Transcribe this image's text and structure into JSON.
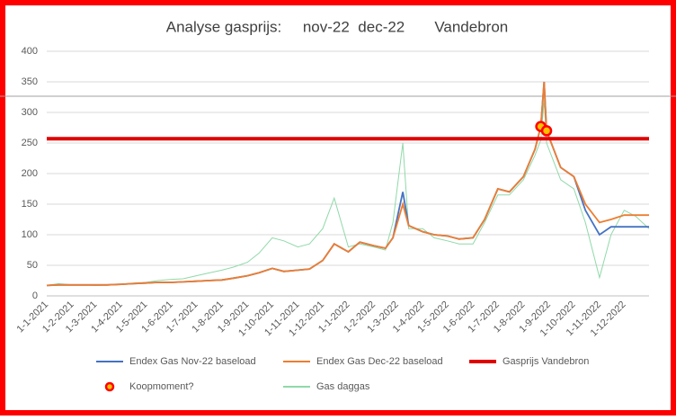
{
  "chart_data": {
    "type": "line",
    "title": "Analyse gasprijs:     nov-22  dec-22       Vandebron",
    "x": [
      "1-1-2021",
      "15-1-2021",
      "1-2-2021",
      "15-2-2021",
      "1-3-2021",
      "15-3-2021",
      "1-4-2021",
      "15-4-2021",
      "1-5-2021",
      "15-5-2021",
      "1-6-2021",
      "15-6-2021",
      "1-7-2021",
      "15-7-2021",
      "1-8-2021",
      "15-8-2021",
      "1-9-2021",
      "15-9-2021",
      "1-10-2021",
      "15-10-2021",
      "1-11-2021",
      "15-11-2021",
      "1-12-2021",
      "15-12-2021",
      "1-1-2022",
      "15-1-2022",
      "1-2-2022",
      "15-2-2022",
      "24-2-2022",
      "8-3-2022",
      "15-3-2022",
      "1-4-2022",
      "15-4-2022",
      "1-5-2022",
      "15-5-2022",
      "1-6-2022",
      "15-6-2022",
      "1-7-2022",
      "15-7-2022",
      "1-8-2022",
      "15-8-2022",
      "22-8-2022",
      "26-8-2022",
      "29-8-2022",
      "15-9-2022",
      "1-10-2022",
      "15-10-2022",
      "1-11-2022",
      "15-11-2022",
      "1-12-2022",
      "15-12-2022",
      "31-12-2022"
    ],
    "series": [
      {
        "name": "Endex Gas Nov-22 baseload",
        "color": "#4472c4",
        "style": "line",
        "values": [
          17,
          18,
          18,
          18,
          18,
          18,
          19,
          20,
          21,
          22,
          22,
          23,
          24,
          25,
          26,
          29,
          33,
          38,
          45,
          40,
          42,
          44,
          58,
          85,
          72,
          88,
          82,
          78,
          95,
          170,
          115,
          105,
          100,
          98,
          93,
          95,
          125,
          175,
          170,
          195,
          240,
          277,
          350,
          270,
          210,
          195,
          140,
          100,
          113,
          113,
          113,
          113
        ]
      },
      {
        "name": "Endex Gas Dec-22 baseload",
        "color": "#ed7d31",
        "style": "line",
        "values": [
          17,
          18,
          18,
          18,
          18,
          18,
          19,
          20,
          21,
          22,
          22,
          23,
          24,
          25,
          26,
          29,
          33,
          38,
          45,
          40,
          42,
          44,
          58,
          85,
          72,
          88,
          82,
          78,
          95,
          150,
          115,
          105,
          100,
          98,
          93,
          95,
          125,
          175,
          170,
          195,
          240,
          277,
          350,
          270,
          210,
          195,
          150,
          120,
          125,
          132,
          132,
          132
        ]
      },
      {
        "name": "Koopmoment?",
        "color": "#ff0000",
        "style": "marker",
        "values": [
          null,
          null,
          null,
          null,
          null,
          null,
          null,
          null,
          null,
          null,
          null,
          null,
          null,
          null,
          null,
          null,
          null,
          null,
          null,
          null,
          null,
          null,
          null,
          null,
          null,
          null,
          null,
          null,
          null,
          null,
          null,
          null,
          null,
          null,
          null,
          null,
          null,
          null,
          null,
          null,
          null,
          277,
          null,
          270,
          null,
          null,
          null,
          null,
          null,
          null,
          null,
          null
        ]
      },
      {
        "name": "Gas daggas",
        "color": "#8fd9a8",
        "style": "line",
        "values": [
          17,
          20,
          18,
          18,
          17,
          18,
          19,
          21,
          22,
          25,
          27,
          28,
          33,
          37,
          42,
          47,
          55,
          70,
          95,
          90,
          80,
          85,
          110,
          160,
          80,
          85,
          80,
          75,
          120,
          250,
          110,
          110,
          95,
          90,
          85,
          85,
          120,
          165,
          165,
          190,
          230,
          255,
          320,
          250,
          190,
          175,
          120,
          30,
          100,
          140,
          130,
          110
        ]
      }
    ],
    "reference_line": {
      "name": "Gasprijs Vandebron",
      "color": "#e00000",
      "value": 257
    },
    "xlim": [
      "1-1-2021",
      "31-12-2022"
    ],
    "xticks": [
      "1-1-2021",
      "1-2-2021",
      "1-3-2021",
      "1-4-2021",
      "1-5-2021",
      "1-6-2021",
      "1-7-2021",
      "1-8-2021",
      "1-9-2021",
      "1-10-2021",
      "1-11-2021",
      "1-12-2021",
      "1-1-2022",
      "1-2-2022",
      "1-3-2022",
      "1-4-2022",
      "1-5-2022",
      "1-6-2022",
      "1-7-2022",
      "1-8-2022",
      "1-9-2022",
      "1-10-2022",
      "1-11-2022",
      "1-12-2022"
    ],
    "ylim": [
      0,
      400
    ],
    "yticks": [
      0,
      50,
      100,
      150,
      200,
      250,
      300,
      350,
      400
    ],
    "grid": true
  }
}
